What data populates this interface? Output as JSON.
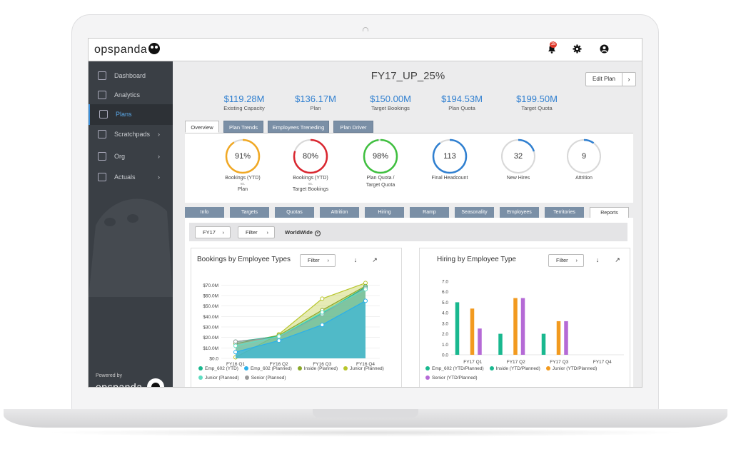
{
  "app": {
    "logo": "opspanda",
    "notification_count": "18"
  },
  "sidebar": {
    "items": [
      {
        "label": "Dashboard",
        "icon": "home-icon"
      },
      {
        "label": "Analytics",
        "icon": "lightbulb-icon"
      },
      {
        "label": "Plans",
        "icon": "line-chart-icon",
        "active": true
      },
      {
        "label": "Scratchpads",
        "icon": "edit-icon",
        "arrow": "›"
      },
      {
        "label": "Org",
        "icon": "share-icon",
        "arrow": "›"
      },
      {
        "label": "Actuals",
        "icon": "share-icon",
        "arrow": "›"
      }
    ],
    "powered_by": "Powered by",
    "powered_logo": "opspanda"
  },
  "header": {
    "title": "FY17_UP_25%",
    "edit_label": "Edit Plan",
    "edit_arrow": "›"
  },
  "kpis": [
    {
      "value": "$119.28M",
      "label": "Existing Capacity"
    },
    {
      "value": "$136.17M",
      "label": "Plan"
    },
    {
      "value": "$150.00M",
      "label": "Target Bookings"
    },
    {
      "value": "$194.53M",
      "label": "Plan Quota"
    },
    {
      "value": "$199.50M",
      "label": "Target Quota"
    }
  ],
  "tabs": [
    "Overview",
    "Plan Trends",
    "Employees Treneding",
    "Plan Driver"
  ],
  "rings": [
    {
      "value": "91%",
      "line1": "Bookings (YTD)",
      "vs": "vs.",
      "line2": "Plan",
      "color": "#f0a824",
      "fraction": 0.91
    },
    {
      "value": "80%",
      "line1": "Bookings (YTD)",
      "vs": "vs.",
      "line2": "Target Bookings",
      "color": "#d9262f",
      "fraction": 0.8
    },
    {
      "value": "98%",
      "line1": "Plan Quota /",
      "vs": "",
      "line2": "Target Quota",
      "color": "#3fbf3f",
      "fraction": 0.98
    },
    {
      "value": "113",
      "line1": "Final Headcount",
      "vs": "",
      "line2": "",
      "color": "#2f7fd0",
      "fraction": 0.9
    },
    {
      "value": "32",
      "line1": "New Hires",
      "vs": "",
      "line2": "",
      "color": "#2f7fd0",
      "fraction": 0.2
    },
    {
      "value": "9",
      "line1": "Attrition",
      "vs": "",
      "line2": "",
      "color": "#2f7fd0",
      "fraction": 0.1
    }
  ],
  "subtabs": [
    "Info",
    "Targets",
    "Quotas",
    "Attrition",
    "Hiring",
    "Ramp",
    "Seasonality",
    "Employees",
    "Territories",
    "Reports"
  ],
  "filterbar": {
    "fy": "FY17",
    "filter": "Filter",
    "scope": "WorldWide",
    "arrow": "›",
    "clear": "×"
  },
  "cards": {
    "left": {
      "title": "Bookings by Employee Types",
      "filter": "Filter"
    },
    "right": {
      "title": "Hiring by Employee Type",
      "filter": "Filter"
    },
    "download_icon": "↓",
    "expand_icon": "↗"
  },
  "chart_data": [
    {
      "type": "area",
      "title": "Bookings by Employee Types",
      "categories": [
        "FY16 Q1",
        "FY16 Q2",
        "FY16 Q3",
        "FY16 Q4"
      ],
      "y_ticks": [
        "$0.0",
        "$10.0M",
        "$20.0M",
        "$30.0M",
        "$40.0M",
        "$50.0M",
        "$60.0M",
        "$70.0M"
      ],
      "ylim": [
        0,
        75
      ],
      "series": [
        {
          "name": "Emp_602 (YTD)",
          "color": "#19b88f",
          "values": [
            16,
            21,
            43,
            68
          ]
        },
        {
          "name": "Emp_602 (Planned)",
          "color": "#2ab0ea",
          "values": [
            6,
            17,
            32,
            55
          ]
        },
        {
          "name": "Inside (Planned)",
          "color": "#8aa82a",
          "values": [
            14,
            22,
            46,
            69
          ]
        },
        {
          "name": "Junior (Planned)",
          "color": "#b7c52a",
          "values": [
            1,
            23,
            57,
            72
          ]
        },
        {
          "name": "Junior (Planned)",
          "color": "#60ddc2",
          "values": [
            12,
            21,
            44,
            66
          ]
        },
        {
          "name": "Senior (Planned)",
          "color": "#9a9a9a",
          "values": [
            16,
            20,
            42,
            67
          ]
        }
      ],
      "legend": "bottom"
    },
    {
      "type": "bar",
      "title": "Hiring by Employee Type",
      "categories": [
        "FY17 Q1",
        "FY17 Q2",
        "FY17 Q3",
        "FY17 Q4"
      ],
      "y_ticks": [
        "0.0",
        "1.0",
        "2.0",
        "3.0",
        "4.0",
        "5.0",
        "6.0",
        "7.0"
      ],
      "ylim": [
        0,
        7
      ],
      "series": [
        {
          "name": "Emp_602 (YTD/Planned)",
          "color": "#19b88f",
          "values": [
            5,
            2,
            2,
            0
          ]
        },
        {
          "name": "Inside (YTD/Planned)",
          "color": "#19b88f",
          "values": [
            0,
            0,
            0,
            0
          ]
        },
        {
          "name": "Junior (YTD/Planned)",
          "color": "#f29a1f",
          "values": [
            4.4,
            5.4,
            3.2,
            0
          ]
        },
        {
          "name": "Senior (YTD/Planned)",
          "color": "#b56ad6",
          "values": [
            2.5,
            5.4,
            3.2,
            0
          ]
        }
      ],
      "legend": "bottom"
    }
  ]
}
